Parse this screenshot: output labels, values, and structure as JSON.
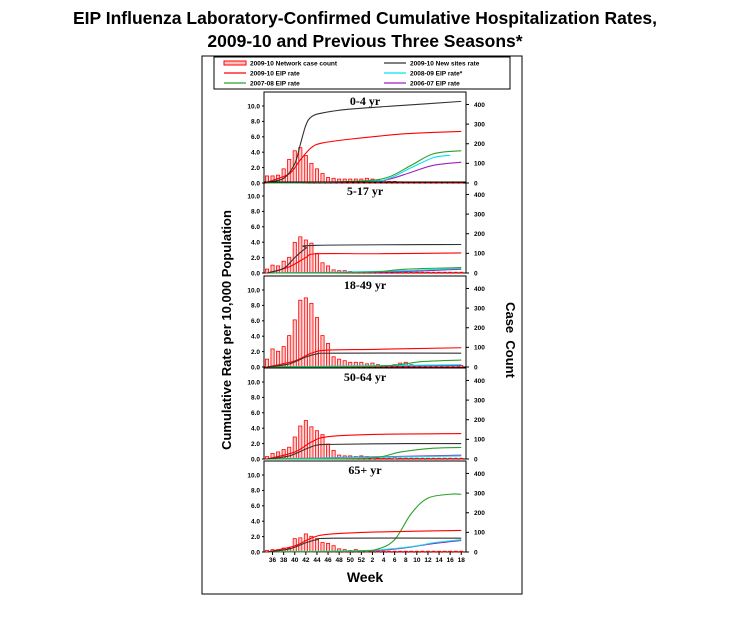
{
  "title_line1": "EIP Influenza Laboratory-Confirmed Cumulative Hospitalization Rates,",
  "title_line2": "2009-10 and Previous Three Seasons*",
  "chart_data": {
    "type": "bar+line",
    "xlabel": "Week",
    "ylabel_left": "Cumulative Rate per 10,000 Population",
    "ylabel_right": "Case  Count",
    "weeks": [
      35,
      36,
      37,
      38,
      39,
      40,
      41,
      42,
      43,
      44,
      45,
      46,
      47,
      48,
      49,
      50,
      51,
      52,
      1,
      2,
      3,
      4,
      5,
      6,
      7,
      8,
      9,
      10,
      11,
      12,
      13,
      14,
      15,
      16,
      17,
      18
    ],
    "x_tick_labels": [
      "36",
      "38",
      "40",
      "42",
      "44",
      "46",
      "48",
      "50",
      "52",
      "2",
      "4",
      "6",
      "8",
      "10",
      "12",
      "14",
      "16",
      "18"
    ],
    "left_ticks": [
      "0.0",
      "2.0",
      "4.0",
      "6.0",
      "8.0",
      "10.0"
    ],
    "right_ticks": [
      "0",
      "100",
      "200",
      "300",
      "400"
    ],
    "ylim_left": [
      0,
      10
    ],
    "ylim_right": [
      0,
      400
    ],
    "legend": [
      {
        "key": "bars",
        "label": "2009-10 Network case count",
        "color": "#ff0000"
      },
      {
        "key": "new_sites",
        "label": "2009-10 New sites rate",
        "color": "#333333"
      },
      {
        "key": "eip_2009",
        "label": "2009-10 EIP rate",
        "color": "#ff0000"
      },
      {
        "key": "eip_2008",
        "label": "2008-09 EIP rate*",
        "color": "#00e5ee"
      },
      {
        "key": "eip_2007",
        "label": "2007-08 EIP rate",
        "color": "#2ca02c"
      },
      {
        "key": "eip_2006",
        "label": "2006-07 EIP rate",
        "color": "#a020c0"
      }
    ],
    "panels": [
      {
        "title": "0-4 yr",
        "case_counts": [
          36,
          36,
          40,
          72,
          120,
          164,
          180,
          140,
          100,
          72,
          48,
          28,
          24,
          20,
          20,
          20,
          20,
          20,
          24,
          20,
          16,
          12,
          8,
          8,
          6,
          4,
          4,
          4,
          4,
          4,
          4,
          4,
          4,
          4,
          4,
          4
        ],
        "series": {
          "new_sites": [
            [
              35,
              0.1
            ],
            [
              38,
              0.6
            ],
            [
              40,
              2.5
            ],
            [
              41,
              5
            ],
            [
              42,
              7.5
            ],
            [
              43,
              8.6
            ],
            [
              45,
              9.1
            ],
            [
              50,
              9.6
            ],
            [
              8,
              10.1
            ],
            [
              18,
              10.6
            ]
          ],
          "eip_2009": [
            [
              35,
              0.1
            ],
            [
              39,
              1.2
            ],
            [
              41,
              3
            ],
            [
              43,
              4.6
            ],
            [
              45,
              5.2
            ],
            [
              50,
              5.7
            ],
            [
              8,
              6.4
            ],
            [
              18,
              6.7
            ]
          ],
          "eip_2007": [
            [
              35,
              0
            ],
            [
              45,
              0.1
            ],
            [
              1,
              0.3
            ],
            [
              5,
              0.8
            ],
            [
              9,
              2.3
            ],
            [
              13,
              3.8
            ],
            [
              18,
              4.2
            ]
          ],
          "eip_2008": [
            [
              35,
              0
            ],
            [
              1,
              0.2
            ],
            [
              5,
              0.6
            ],
            [
              9,
              2.0
            ],
            [
              13,
              3.3
            ],
            [
              16,
              3.6
            ]
          ],
          "eip_2006": [
            [
              35,
              0
            ],
            [
              1,
              0.2
            ],
            [
              5,
              0.5
            ],
            [
              9,
              1.4
            ],
            [
              13,
              2.3
            ],
            [
              18,
              2.7
            ]
          ]
        }
      },
      {
        "title": "5-17 yr",
        "case_counts": [
          20,
          40,
          36,
          60,
          80,
          156,
          184,
          168,
          152,
          100,
          52,
          36,
          16,
          12,
          12,
          8,
          4,
          4,
          4,
          4,
          4,
          4,
          4,
          4,
          4,
          4,
          4,
          4,
          4,
          4,
          4,
          4,
          4,
          4,
          4,
          4
        ],
        "series": {
          "new_sites": [
            [
              35,
              0
            ],
            [
              38,
              0.6
            ],
            [
              40,
              2
            ],
            [
              42,
              3.2
            ],
            [
              44,
              3.6
            ],
            [
              18,
              3.7
            ]
          ],
          "eip_2009": [
            [
              35,
              0
            ],
            [
              39,
              0.8
            ],
            [
              42,
              2
            ],
            [
              44,
              2.5
            ],
            [
              3,
              2.5
            ],
            [
              18,
              2.6
            ]
          ],
          "eip_2007": [
            [
              35,
              0
            ],
            [
              1,
              0.1
            ],
            [
              8,
              0.5
            ],
            [
              18,
              0.7
            ]
          ],
          "eip_2008": [
            [
              35,
              0
            ],
            [
              3,
              0.2
            ],
            [
              18,
              0.6
            ]
          ],
          "eip_2006": [
            [
              35,
              0
            ],
            [
              3,
              0.1
            ],
            [
              18,
              0.5
            ]
          ]
        }
      },
      {
        "title": "18-49 yr",
        "case_counts": [
          40,
          92,
          80,
          104,
          160,
          240,
          340,
          352,
          324,
          252,
          160,
          120,
          52,
          40,
          32,
          24,
          24,
          24,
          16,
          20,
          12,
          8,
          8,
          12,
          20,
          24,
          12,
          8,
          8,
          8,
          8,
          8,
          8,
          8,
          8,
          8
        ],
        "series": {
          "new_sites": [
            [
              35,
              0
            ],
            [
              39,
              0.4
            ],
            [
              42,
              1.3
            ],
            [
              44,
              1.7
            ],
            [
              47,
              1.8
            ],
            [
              18,
              1.8
            ]
          ],
          "eip_2009": [
            [
              35,
              0
            ],
            [
              40,
              0.8
            ],
            [
              43,
              1.8
            ],
            [
              46,
              2.2
            ],
            [
              3,
              2.3
            ],
            [
              18,
              2.5
            ]
          ],
          "eip_2007": [
            [
              35,
              0
            ],
            [
              3,
              0.1
            ],
            [
              11,
              0.7
            ],
            [
              18,
              0.9
            ]
          ],
          "eip_2008": [
            [
              35,
              0
            ],
            [
              18,
              0.3
            ]
          ],
          "eip_2006": [
            [
              35,
              0
            ],
            [
              18,
              0.2
            ]
          ]
        }
      },
      {
        "title": "50-64 yr",
        "case_counts": [
          12,
          28,
          36,
          48,
          60,
          112,
          168,
          196,
          164,
          144,
          124,
          76,
          44,
          20,
          16,
          16,
          12,
          16,
          12,
          8,
          4,
          4,
          4,
          8,
          4,
          4,
          4,
          4,
          4,
          4,
          4,
          4,
          4,
          4,
          4,
          4
        ],
        "series": {
          "new_sites": [
            [
              35,
              0
            ],
            [
              39,
              0.4
            ],
            [
              42,
              1.3
            ],
            [
              44,
              1.8
            ],
            [
              47,
              1.9
            ],
            [
              8,
              2.0
            ],
            [
              18,
              2.0
            ]
          ],
          "eip_2009": [
            [
              35,
              0
            ],
            [
              40,
              0.9
            ],
            [
              43,
              2.2
            ],
            [
              46,
              2.9
            ],
            [
              3,
              3.2
            ],
            [
              18,
              3.3
            ]
          ],
          "eip_2007": [
            [
              35,
              0
            ],
            [
              1,
              0.1
            ],
            [
              7,
              0.9
            ],
            [
              13,
              1.4
            ],
            [
              18,
              1.5
            ]
          ],
          "eip_2008": [
            [
              35,
              0
            ],
            [
              18,
              0.4
            ]
          ],
          "eip_2006": [
            [
              35,
              0
            ],
            [
              18,
              0.5
            ]
          ]
        }
      },
      {
        "title": "65+ yr",
        "case_counts": [
          8,
          12,
          12,
          20,
          20,
          68,
          72,
          92,
          80,
          68,
          48,
          44,
          32,
          16,
          12,
          8,
          12,
          8,
          8,
          4,
          4,
          4,
          4,
          4,
          4,
          4,
          4,
          4,
          4,
          4,
          4,
          4,
          4,
          4,
          4,
          4
        ],
        "series": {
          "new_sites": [
            [
              35,
              0
            ],
            [
              39,
              0.4
            ],
            [
              42,
              1.2
            ],
            [
              44,
              1.6
            ],
            [
              47,
              1.8
            ],
            [
              18,
              1.8
            ]
          ],
          "eip_2009": [
            [
              35,
              0
            ],
            [
              40,
              0.8
            ],
            [
              43,
              1.8
            ],
            [
              46,
              2.3
            ],
            [
              3,
              2.6
            ],
            [
              18,
              2.8
            ]
          ],
          "eip_2007": [
            [
              35,
              0
            ],
            [
              51,
              0.1
            ],
            [
              3,
              0.4
            ],
            [
              6,
              1.6
            ],
            [
              9,
              5.0
            ],
            [
              12,
              7.0
            ],
            [
              16,
              7.5
            ],
            [
              18,
              7.5
            ]
          ],
          "eip_2008": [
            [
              35,
              0
            ],
            [
              1,
              0.2
            ],
            [
              9,
              0.7
            ],
            [
              13,
              1.2
            ],
            [
              18,
              1.6
            ]
          ],
          "eip_2006": [
            [
              35,
              0
            ],
            [
              3,
              0.2
            ],
            [
              13,
              1.1
            ],
            [
              18,
              1.5
            ]
          ]
        }
      }
    ]
  }
}
